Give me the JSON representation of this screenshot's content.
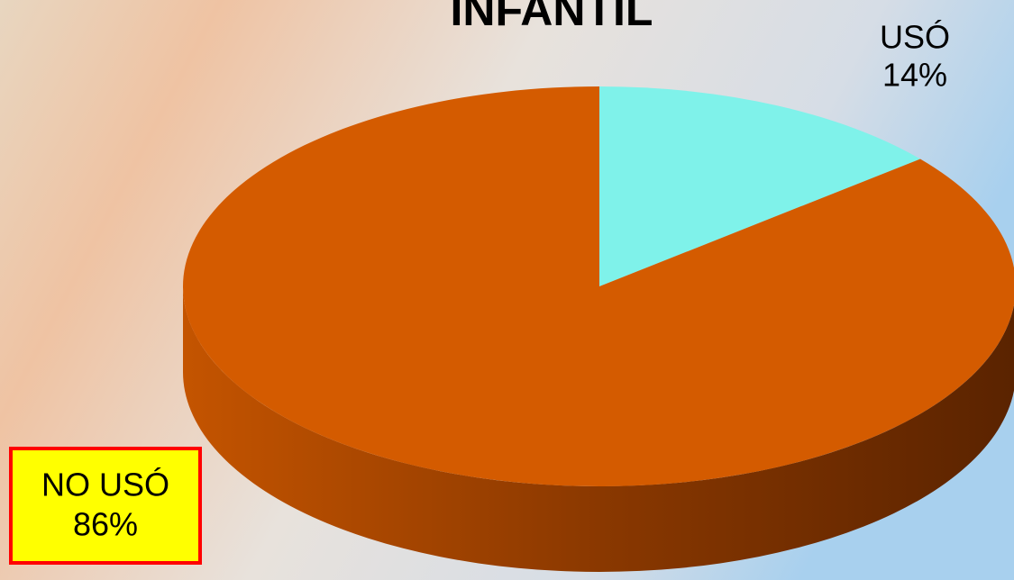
{
  "chart_data": {
    "type": "pie",
    "title": "INFANTIL",
    "categories": [
      "USÓ",
      "NO USÓ"
    ],
    "values": [
      14,
      86
    ],
    "value_labels": [
      "14%",
      "86%"
    ],
    "colors": [
      "#7ff2ea",
      "#d45b00"
    ]
  }
}
